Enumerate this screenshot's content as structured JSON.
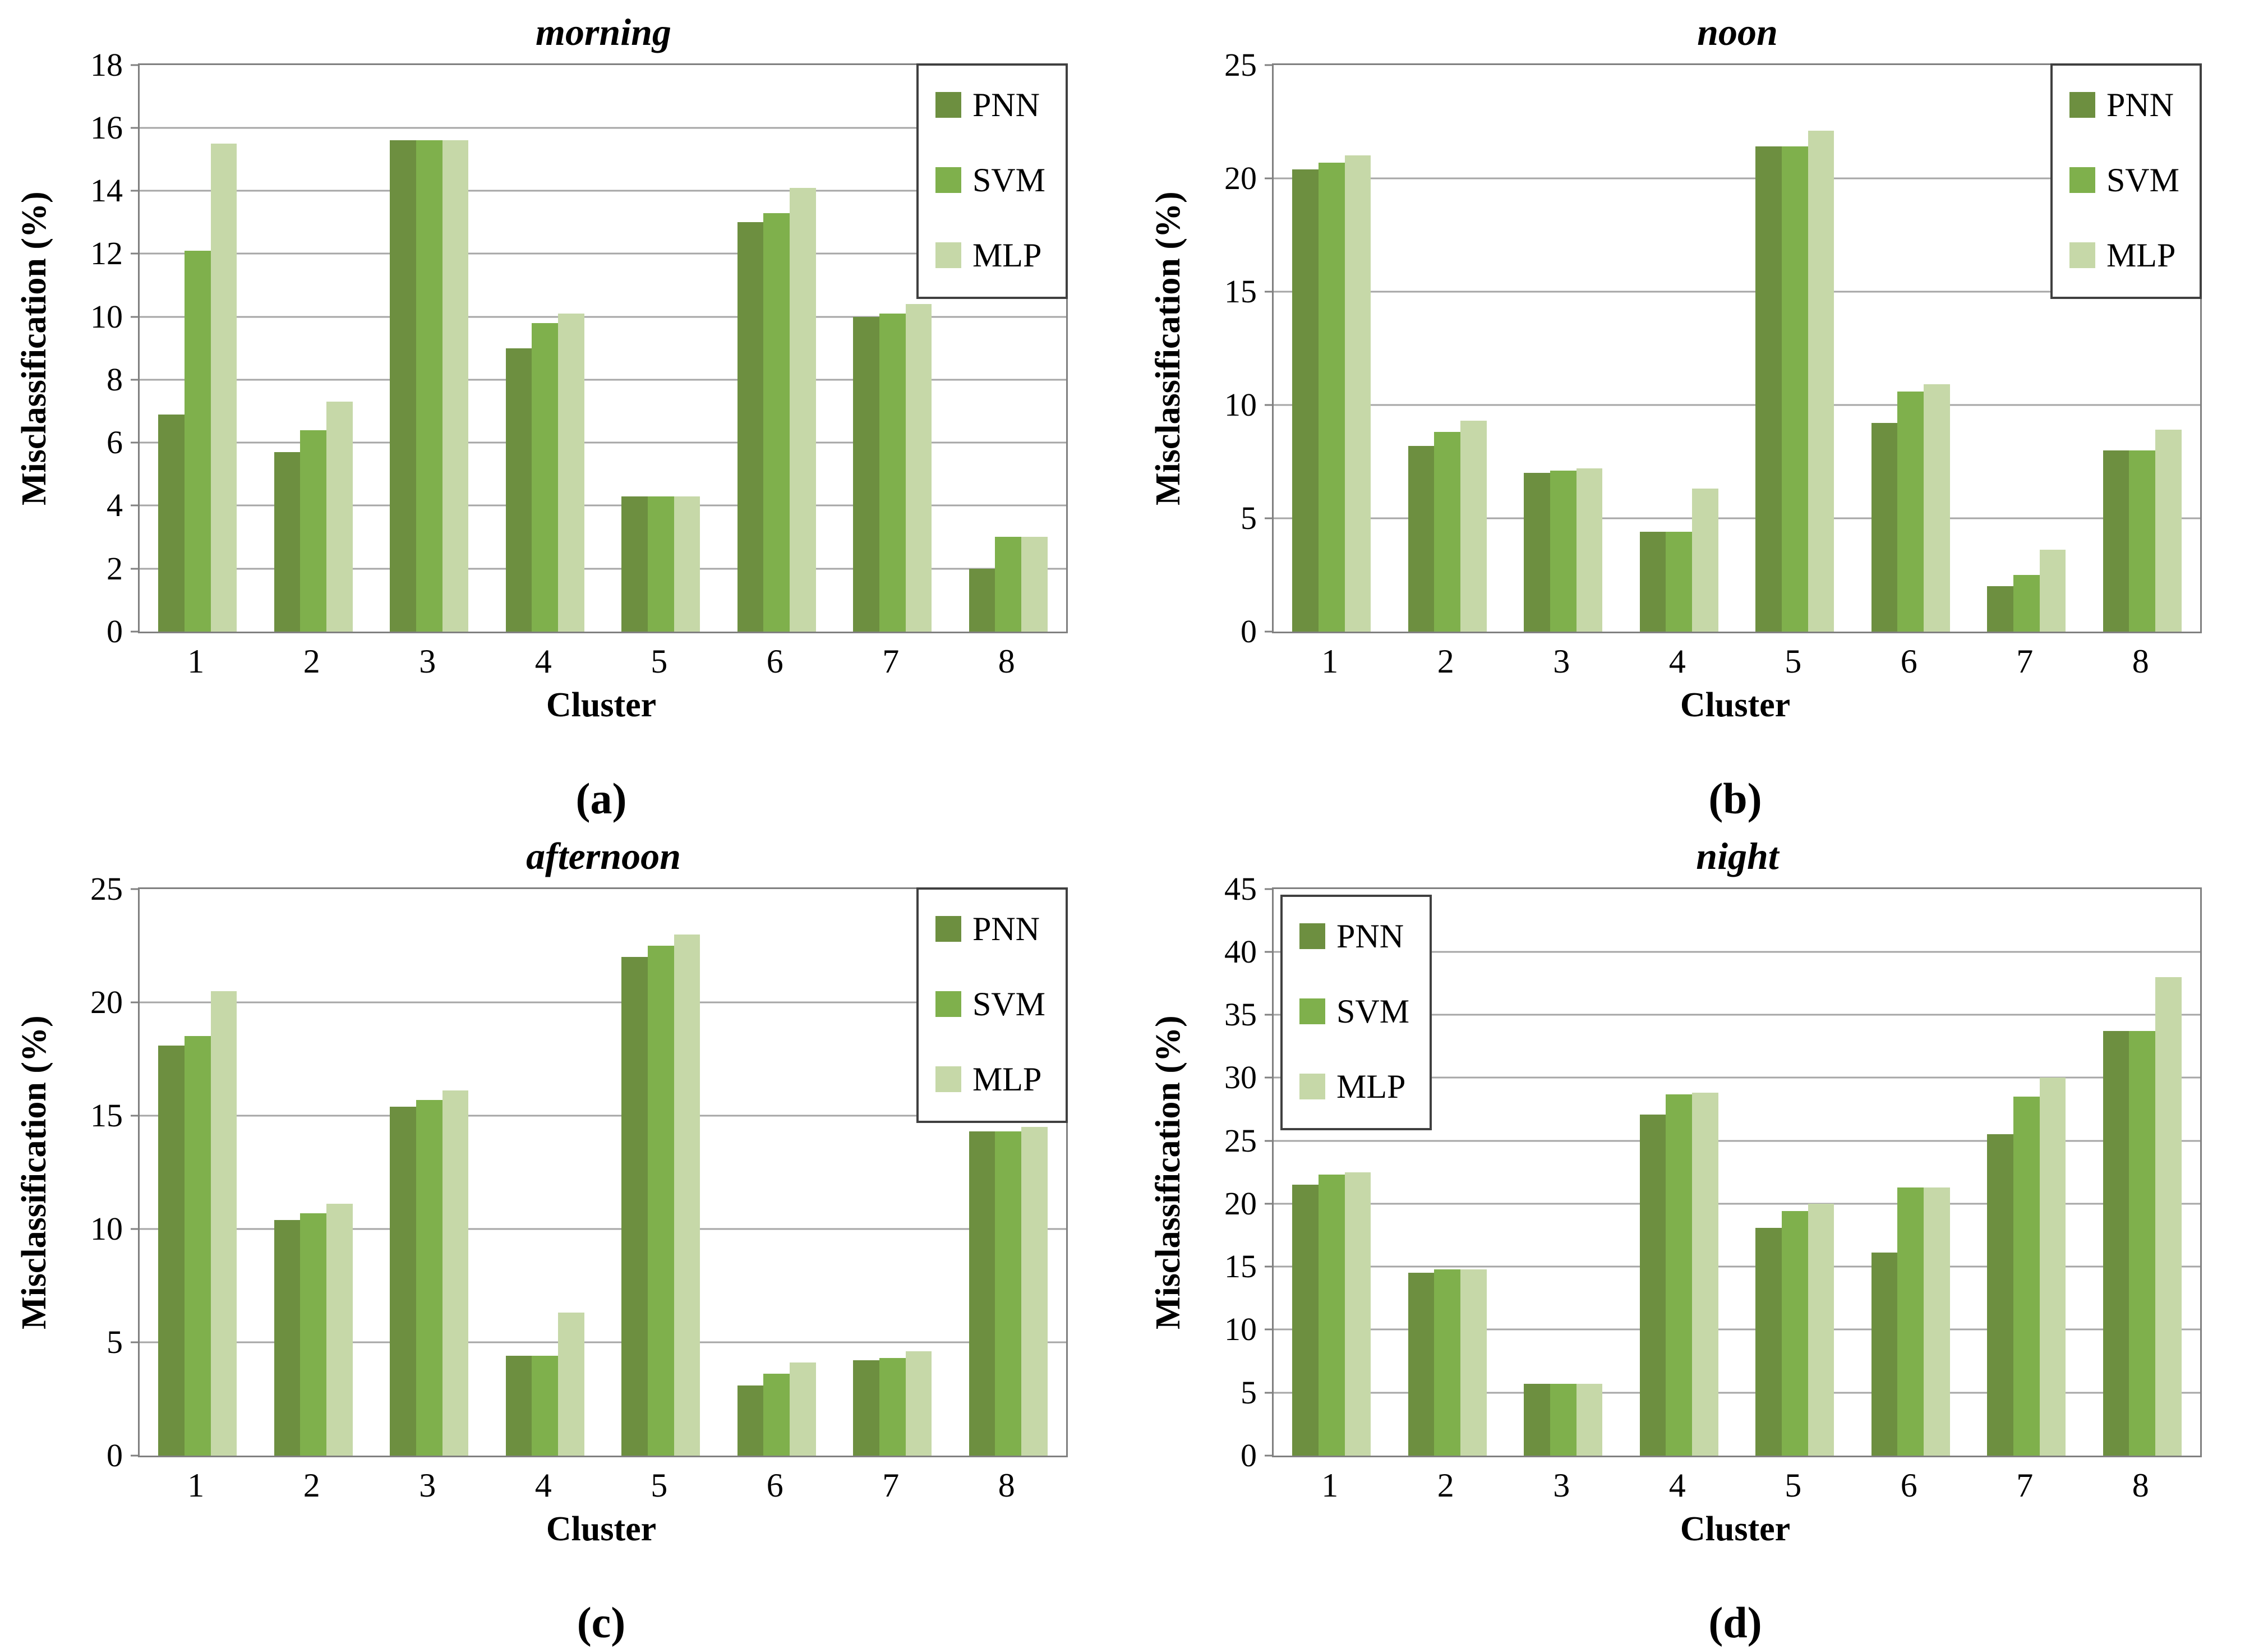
{
  "figure": {
    "y_axis_label": "Misclassification (%)",
    "x_axis_label": "Cluster",
    "legend_entries": [
      "PNN",
      "SVM",
      "MLP"
    ],
    "colors": {
      "PNN": "#6d8f40",
      "SVM": "#7fb04c",
      "MLP": "#c6d8a8",
      "gridline": "#a6a6a6",
      "plot_border": "#808080",
      "legend_border": "#404040"
    }
  },
  "chart_data": [
    {
      "type": "bar",
      "panel_letter": "(a)",
      "title": "morning",
      "categories": [
        "1",
        "2",
        "3",
        "4",
        "5",
        "6",
        "7",
        "8"
      ],
      "series": [
        {
          "name": "PNN",
          "values": [
            6.9,
            5.7,
            15.6,
            9.0,
            4.3,
            13.0,
            10.0,
            2.0
          ]
        },
        {
          "name": "SVM",
          "values": [
            12.1,
            6.4,
            15.6,
            9.8,
            4.3,
            13.3,
            10.1,
            3.0
          ]
        },
        {
          "name": "MLP",
          "values": [
            15.5,
            7.3,
            15.6,
            10.1,
            4.3,
            14.1,
            10.4,
            3.0
          ]
        }
      ],
      "xlabel": "Cluster",
      "ylabel": "Misclassification (%)",
      "ylim": [
        0,
        18
      ],
      "ytick_step": 2,
      "grid": true,
      "legend_position": "top-right"
    },
    {
      "type": "bar",
      "panel_letter": "(b)",
      "title": "noon",
      "categories": [
        "1",
        "2",
        "3",
        "4",
        "5",
        "6",
        "7",
        "8"
      ],
      "series": [
        {
          "name": "PNN",
          "values": [
            20.4,
            8.2,
            7.0,
            4.4,
            21.4,
            9.2,
            2.0,
            8.0
          ]
        },
        {
          "name": "SVM",
          "values": [
            20.7,
            8.8,
            7.1,
            4.4,
            21.4,
            10.6,
            2.5,
            8.0
          ]
        },
        {
          "name": "MLP",
          "values": [
            21.0,
            9.3,
            7.2,
            6.3,
            22.1,
            10.9,
            3.6,
            8.9
          ]
        }
      ],
      "xlabel": "Cluster",
      "ylabel": "Misclassification (%)",
      "ylim": [
        0,
        25
      ],
      "ytick_step": 5,
      "grid": true,
      "legend_position": "top-right"
    },
    {
      "type": "bar",
      "panel_letter": "(c)",
      "title": "afternoon",
      "categories": [
        "1",
        "2",
        "3",
        "4",
        "5",
        "6",
        "7",
        "8"
      ],
      "series": [
        {
          "name": "PNN",
          "values": [
            18.1,
            10.4,
            15.4,
            4.4,
            22.0,
            3.1,
            4.2,
            14.3
          ]
        },
        {
          "name": "SVM",
          "values": [
            18.5,
            10.7,
            15.7,
            4.4,
            22.5,
            3.6,
            4.3,
            14.3
          ]
        },
        {
          "name": "MLP",
          "values": [
            20.5,
            11.1,
            16.1,
            6.3,
            23.0,
            4.1,
            4.6,
            14.5
          ]
        }
      ],
      "xlabel": "Cluster",
      "ylabel": "Misclassification (%)",
      "ylim": [
        0,
        25
      ],
      "ytick_step": 5,
      "grid": true,
      "legend_position": "top-right"
    },
    {
      "type": "bar",
      "panel_letter": "(d)",
      "title": "night",
      "categories": [
        "1",
        "2",
        "3",
        "4",
        "5",
        "6",
        "7",
        "8"
      ],
      "series": [
        {
          "name": "PNN",
          "values": [
            21.5,
            14.5,
            5.7,
            27.1,
            18.1,
            16.1,
            25.5,
            33.7
          ]
        },
        {
          "name": "SVM",
          "values": [
            22.3,
            14.8,
            5.7,
            28.7,
            19.4,
            21.3,
            28.5,
            33.7
          ]
        },
        {
          "name": "MLP",
          "values": [
            22.5,
            14.8,
            5.7,
            28.8,
            20.0,
            21.3,
            30.0,
            38.0
          ]
        }
      ],
      "xlabel": "Cluster",
      "ylabel": "Misclassification (%)",
      "ylim": [
        0,
        45
      ],
      "ytick_step": 5,
      "grid": true,
      "legend_position": "top-left"
    }
  ]
}
